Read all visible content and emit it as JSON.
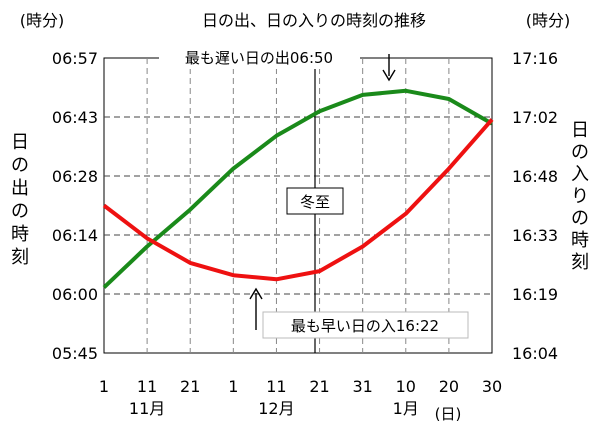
{
  "chart_data": {
    "type": "line",
    "title": "日の出、日の入りの時刻の推移",
    "left_axis": {
      "unit": "(時分)",
      "label_chars": [
        "日",
        "の",
        "出",
        "の",
        "時",
        "刻"
      ],
      "ticks": [
        "06:57",
        "06:43",
        "06:28",
        "06:14",
        "06:00",
        "05:45"
      ],
      "ylim": [
        "05:45",
        "06:57"
      ]
    },
    "right_axis": {
      "unit": "(時分)",
      "label_chars": [
        "日",
        "の",
        "入",
        "り",
        "の",
        "時",
        "刻"
      ],
      "ticks": [
        "17:16",
        "17:02",
        "16:48",
        "16:33",
        "16:19",
        "16:04"
      ],
      "ylim": [
        "16:04",
        "17:16"
      ]
    },
    "x_axis": {
      "day_ticks": [
        "1",
        "11",
        "21",
        "1",
        "11",
        "21",
        "31",
        "10",
        "20",
        "30"
      ],
      "months": [
        "11月",
        "12月",
        "1月"
      ],
      "unit": "(日)",
      "range": [
        "11月1日",
        "1月30日"
      ]
    },
    "grid": true,
    "series": [
      {
        "name": "日の出",
        "color": "#1a8a1a",
        "axis": "left",
        "points": [
          [
            "11-01",
            "06:01"
          ],
          [
            "11-11",
            "06:11"
          ],
          [
            "11-21",
            "06:20"
          ],
          [
            "12-01",
            "06:30"
          ],
          [
            "12-11",
            "06:38"
          ],
          [
            "12-21",
            "06:44"
          ],
          [
            "12-31",
            "06:48"
          ],
          [
            "01-10",
            "06:49"
          ],
          [
            "01-20",
            "06:47"
          ],
          [
            "01-30",
            "06:41"
          ]
        ]
      },
      {
        "name": "日の入",
        "color": "#ee1111",
        "axis": "right",
        "points": [
          [
            "11-01",
            "16:40"
          ],
          [
            "11-11",
            "16:32"
          ],
          [
            "11-21",
            "16:26"
          ],
          [
            "12-01",
            "16:23"
          ],
          [
            "12-11",
            "16:22"
          ],
          [
            "12-21",
            "16:24"
          ],
          [
            "12-31",
            "16:30"
          ],
          [
            "01-10",
            "16:38"
          ],
          [
            "01-20",
            "16:49"
          ],
          [
            "01-30",
            "17:01"
          ]
        ]
      }
    ],
    "annotations": {
      "latest_sunrise": "最も遅い日の出06:50",
      "winter_solstice": "冬至",
      "earliest_sunset": "最も早い日の入16:22"
    }
  }
}
